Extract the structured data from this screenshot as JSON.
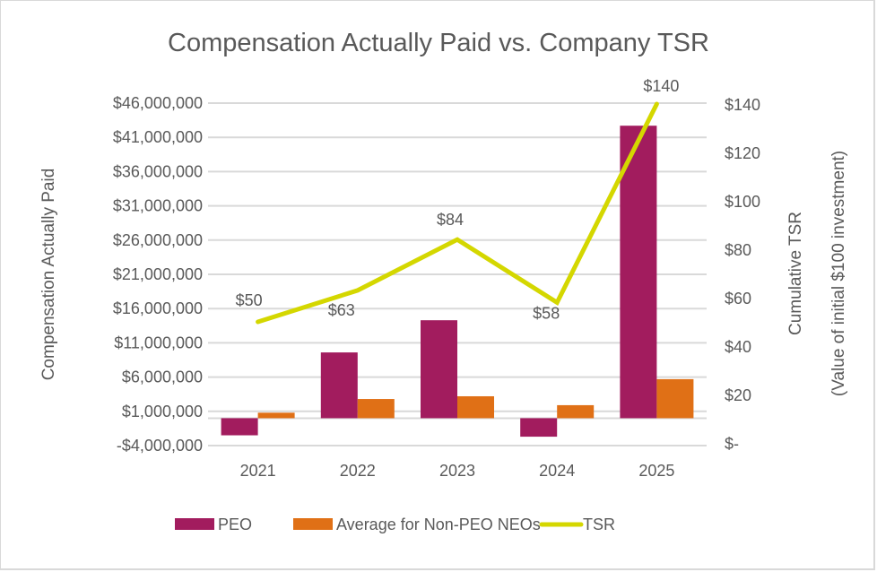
{
  "chart_data": {
    "type": "bar+line",
    "title": "Compensation Actually Paid vs. Company TSR",
    "categories": [
      "2021",
      "2022",
      "2023",
      "2024",
      "2025"
    ],
    "y_left": {
      "label": "Compensation Actually Paid",
      "range": [
        -4000000,
        46000000
      ],
      "ticks": [
        -4000000,
        1000000,
        6000000,
        11000000,
        16000000,
        21000000,
        26000000,
        31000000,
        36000000,
        41000000,
        46000000
      ],
      "tick_labels": [
        "-$4,000,000",
        "$1,000,000",
        "$6,000,000",
        "$11,000,000",
        "$16,000,000",
        "$21,000,000",
        "$26,000,000",
        "$31,000,000",
        "$36,000,000",
        "$41,000,000",
        "$46,000,000"
      ]
    },
    "y_right": {
      "label_line1": "Cumulative TSR",
      "label_line2": "(Value of initial $100 investment)",
      "range": [
        0,
        140
      ],
      "ticks": [
        0,
        20,
        40,
        60,
        80,
        100,
        120,
        140
      ],
      "tick_labels": [
        "$-",
        "$20",
        "$40",
        "$60",
        "$80",
        "$100",
        "$120",
        "$140"
      ]
    },
    "grid": true,
    "legend_position": "bottom",
    "series": [
      {
        "name": "PEO",
        "type": "bar",
        "axis": "left",
        "color": "#a21c5e",
        "values": [
          -2500000,
          9600000,
          14300000,
          -2700000,
          42700000
        ]
      },
      {
        "name": "Average for Non-PEO NEOs",
        "type": "bar",
        "axis": "left",
        "color": "#e07016",
        "values": [
          800000,
          2800000,
          3200000,
          1900000,
          5700000
        ]
      },
      {
        "name": "TSR",
        "type": "line",
        "axis": "right",
        "color": "#d4d700",
        "values": [
          50,
          63,
          84,
          58,
          140
        ],
        "data_labels": [
          "$50",
          "$63",
          "$84",
          "$58",
          "$140"
        ]
      }
    ]
  }
}
